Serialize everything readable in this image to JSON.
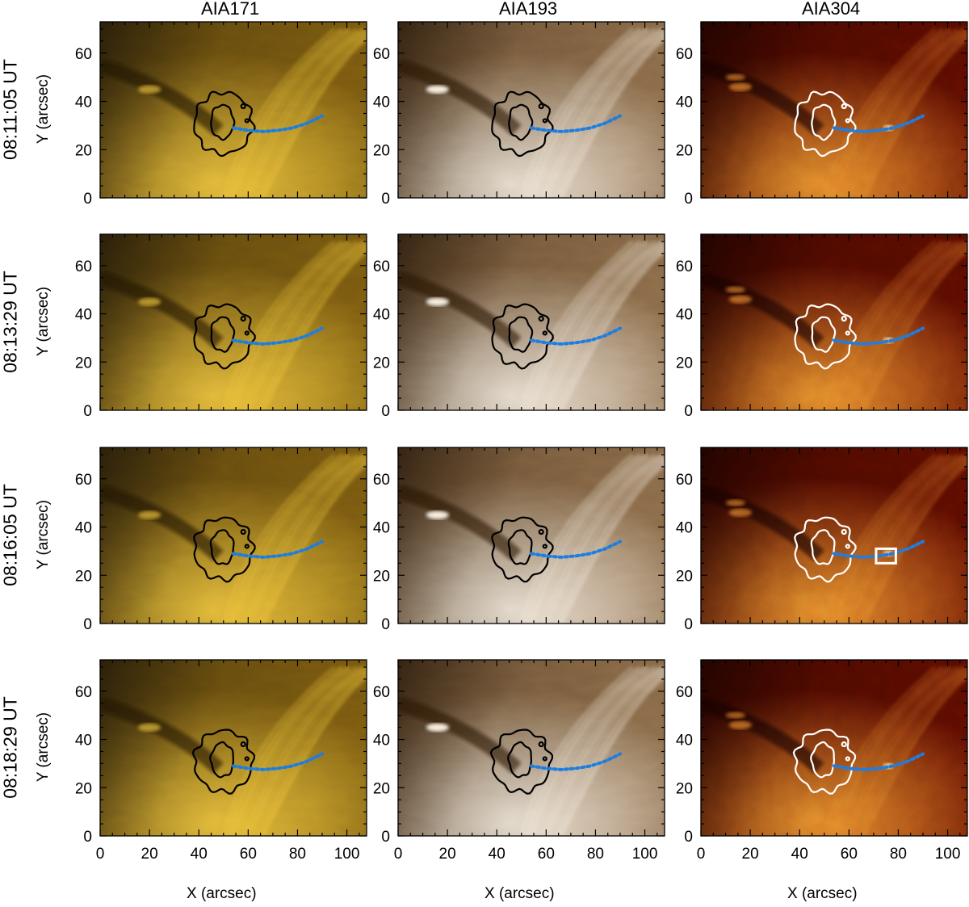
{
  "columns": [
    {
      "title": "AIA171",
      "palette": "aia171",
      "contour_color": "#000000",
      "base": "#7a5a10",
      "bright": "#ffd040",
      "shade": "#1a1408"
    },
    {
      "title": "AIA193",
      "palette": "aia193",
      "contour_color": "#000000",
      "base": "#8a6a48",
      "bright": "#fff6e8",
      "shade": "#241608"
    },
    {
      "title": "AIA304",
      "palette": "aia304",
      "contour_color": "#ffffff",
      "base": "#5a0c00",
      "bright": "#ff9a30",
      "shade": "#160200"
    }
  ],
  "rows": [
    {
      "label": "08:11:05 UT",
      "box": false
    },
    {
      "label": "08:13:29 UT",
      "box": false
    },
    {
      "label": "08:16:05 UT",
      "box": true
    },
    {
      "label": "08:18:29 UT",
      "box": false
    }
  ],
  "axes": {
    "ylabel": "Y (arcsec)",
    "xlabel": "X (arcsec)",
    "xticks": [
      0,
      20,
      40,
      60,
      80,
      100
    ],
    "yticks": [
      0,
      20,
      40,
      60
    ],
    "xrange": [
      0,
      108
    ],
    "yrange": [
      0,
      73
    ]
  },
  "loop_path": [
    [
      54,
      29
    ],
    [
      60,
      28
    ],
    [
      66,
      27.5
    ],
    [
      72,
      28
    ],
    [
      78,
      29
    ],
    [
      84,
      31
    ],
    [
      90,
      34
    ]
  ],
  "loop_color": "#1e7ee0",
  "box_region": {
    "x": [
      71,
      79
    ],
    "y": [
      25,
      31
    ]
  },
  "contour_center": [
    50,
    31
  ]
}
